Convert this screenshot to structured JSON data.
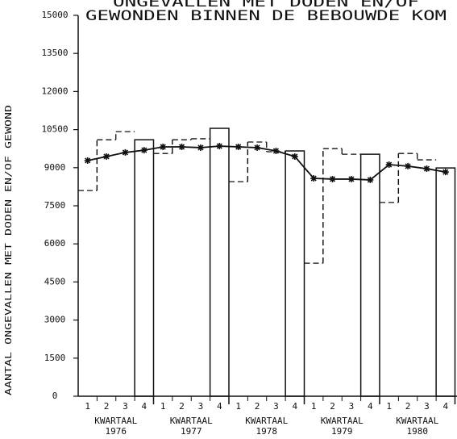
{
  "chart_data": {
    "type": "step-bar-line",
    "title": [
      "ONGEVALLEN MET DODEN EN/OF",
      "GEWONDEN BINNEN DE BEBOUWDE KOM"
    ],
    "y_label": "AANTAL ONGEVALLEN MET DODEN EN/OF GEWOND",
    "quarters": [
      "1",
      "2",
      "3",
      "4"
    ],
    "groups": [
      {
        "label": "KWARTAAL",
        "year": "1976"
      },
      {
        "label": "KWARTAAL",
        "year": "1977"
      },
      {
        "label": "KWARTAAL",
        "year": "1978"
      },
      {
        "label": "KWARTAAL",
        "year": "1979"
      },
      {
        "label": "KWARTAAL",
        "year": "1980"
      }
    ],
    "ylim": [
      0,
      15000
    ],
    "yticks": [
      0,
      1500,
      3000,
      4500,
      6000,
      7500,
      9000,
      10500,
      12000,
      13500,
      15000
    ],
    "series": [
      {
        "style": "dashed-step",
        "color": "#111111",
        "values": [
          8100,
          10100,
          10420,
          10100,
          9560,
          10100,
          10140,
          10550,
          8450,
          10010,
          9630,
          9660,
          5240,
          9750,
          9530,
          9530,
          7630,
          9560,
          9310,
          8990
        ]
      },
      {
        "style": "line-star",
        "color": "#111111",
        "values": [
          9280,
          9440,
          9600,
          9690,
          9820,
          9820,
          9790,
          9850,
          9820,
          9790,
          9660,
          9440,
          8580,
          8550,
          8550,
          8520,
          9120,
          9060,
          8960,
          8830
        ]
      }
    ]
  }
}
